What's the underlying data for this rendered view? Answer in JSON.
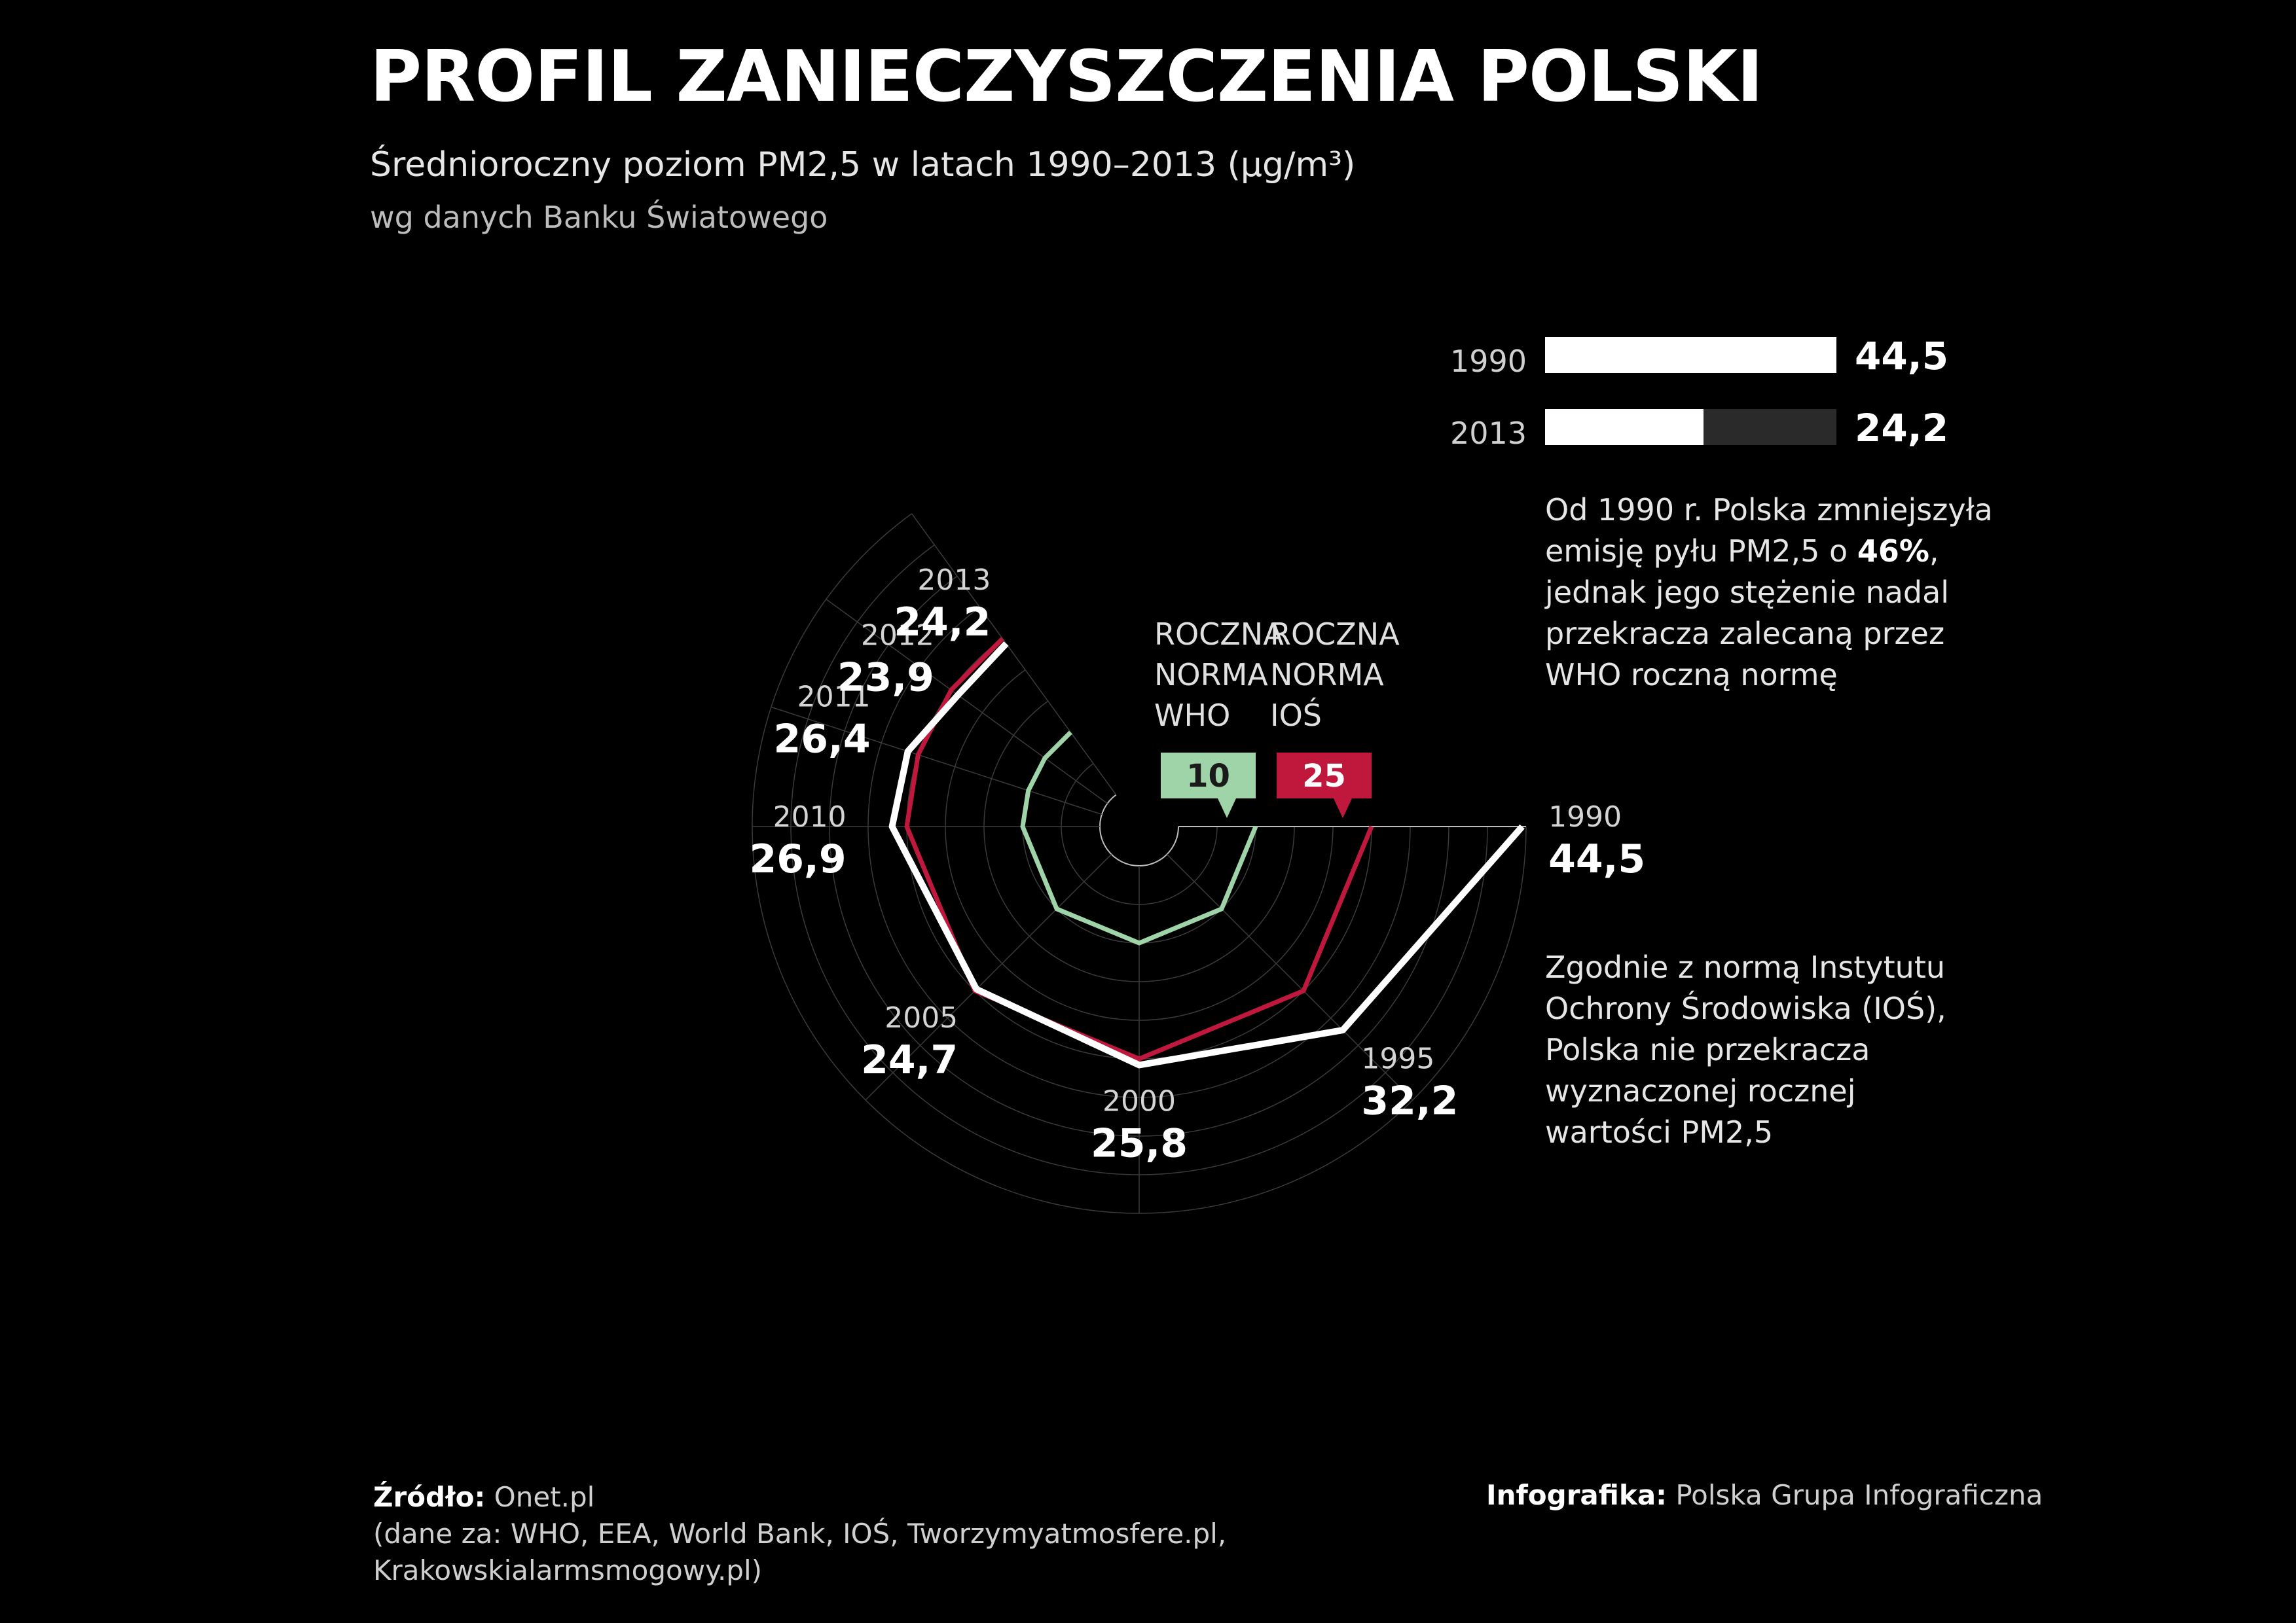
{
  "title": "PROFIL ZANIECZYSZCZENIA POLSKI",
  "subtitle": "Średnioroczny poziom PM2,5 w latach 1990–2013 (µg/m³)",
  "source_note": "wg danych Banku Światowego",
  "chart_data": {
    "type": "line",
    "layout": "radial-spiral",
    "title": "PROFIL ZANIECZYSZCZENIA POLSKI",
    "subtitle": "Średnioroczny poziom PM2,5 w latach 1990–2013 (µg/m³)",
    "series": [
      {
        "name": "PM2,5",
        "color": "#ffffff",
        "points": [
          {
            "year": "1990",
            "label": "44,5",
            "value": 44.5
          },
          {
            "year": "1995",
            "label": "32,2",
            "value": 32.2
          },
          {
            "year": "2000",
            "label": "25,8",
            "value": 25.8
          },
          {
            "year": "2005",
            "label": "24,7",
            "value": 24.7
          },
          {
            "year": "2010",
            "label": "26,9",
            "value": 26.9
          },
          {
            "year": "2011",
            "label": "26,4",
            "value": 26.4
          },
          {
            "year": "2012",
            "label": "23,9",
            "value": 23.9
          },
          {
            "year": "2013",
            "label": "24,2",
            "value": 24.2
          }
        ]
      }
    ],
    "reference_lines": [
      {
        "label_lines": [
          "ROCZNA",
          "NORMA",
          "WHO"
        ],
        "value": 10,
        "value_label": "10",
        "color": "#9fd3a8"
      },
      {
        "label_lines": [
          "ROCZNA",
          "NORMA",
          "IOŚ"
        ],
        "value": 25,
        "value_label": "25",
        "color": "#c0183d"
      }
    ],
    "radial_range": [
      0,
      45
    ],
    "grid": true
  },
  "comparison": {
    "max": 44.5,
    "bars": [
      {
        "year": "1990",
        "value": 44.5,
        "label": "44,5"
      },
      {
        "year": "2013",
        "value": 24.2,
        "label": "24,2"
      }
    ]
  },
  "note1": {
    "before": "Od 1990 r. Polska zmniejszyła emisję pyłu PM2,5 o ",
    "bold": "46%",
    "after": ", jednak jego stężenie nadal przekracza zalecaną przez WHO roczną normę"
  },
  "note2": "Zgodnie z normą Instytutu Ochrony Środowiska (IOŚ), Polska nie przekracza wyznaczonej rocznej wartości PM2,5",
  "footer": {
    "source_label": "Źródło:",
    "source_value": " Onet.pl",
    "source_details": "(dane za: WHO, EEA, World Bank, IOŚ, Tworzymyatmosfere.pl, Krakowskialarmsmogowy.pl)",
    "credit_label": "Infografika:",
    "credit_value": " Polska Grupa Infograficzna"
  }
}
